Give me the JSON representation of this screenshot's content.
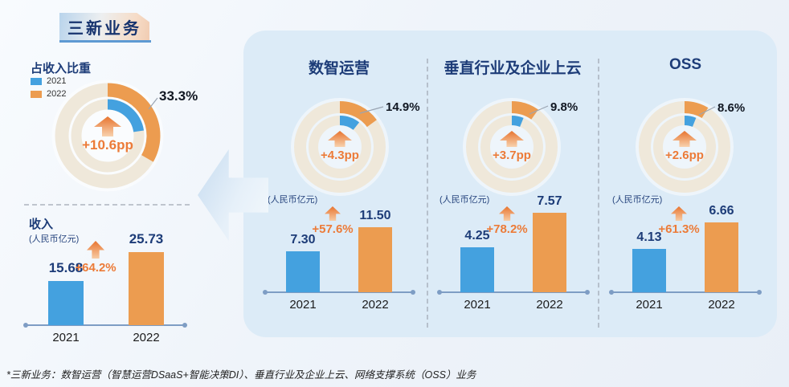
{
  "page": {
    "title": "三新业务",
    "footnote": "*三新业务：数智运营（智慧运营DSaaS+智能决策DI）、垂直行业及企业上云、网络支撑系统（OSS）业务"
  },
  "palette": {
    "blue": "#44A1DF",
    "orange": "#EC9C50",
    "ring_beige": "#EFE8DA",
    "navy": "#1D3C78",
    "accent_orange": "#EC7B38",
    "panel_blue": "#DCEBF7",
    "axis_blue_gray": "#7E9DC4",
    "label_black": "#111722"
  },
  "legend": {
    "items": [
      {
        "label": "2021",
        "color": "#44A1DF"
      },
      {
        "label": "2022",
        "color": "#EC9C50"
      }
    ]
  },
  "left": {
    "share": {
      "title": "占收入比重",
      "percent_label": "33.3%",
      "delta_label": "+10.6pp"
    },
    "revenue": {
      "title": "收入",
      "unit": "(人民币亿元)",
      "growth_label": "+64.2%"
    }
  },
  "segments": [
    {
      "name": "数智运营",
      "unit": "(人民币亿元)",
      "share": {
        "percent_label": "14.9%",
        "delta_label": "+4.3pp"
      },
      "revenue": {
        "growth_label": "+57.6%"
      }
    },
    {
      "name": "垂直行业及企业上云",
      "unit": "(人民币亿元)",
      "share": {
        "percent_label": "9.8%",
        "delta_label": "+3.7pp"
      },
      "revenue": {
        "growth_label": "+78.2%"
      }
    },
    {
      "name": "OSS",
      "unit": "(人民币亿元)",
      "share": {
        "percent_label": "8.6%",
        "delta_label": "+2.6pp"
      },
      "revenue": {
        "growth_label": "+61.3%"
      }
    }
  ],
  "chart_data": [
    {
      "id": "overall_share",
      "type": "donut",
      "title": "三新业务占收入比重",
      "series": [
        {
          "name": "2022",
          "ring": "outer",
          "percent": 33.3,
          "color": "#EC9C50"
        },
        {
          "name": "2021",
          "ring": "inner",
          "percent": 22.7,
          "color": "#44A1DF"
        }
      ],
      "callout": "33.3%",
      "center_annotation": "+10.6pp"
    },
    {
      "id": "overall_revenue",
      "type": "bar",
      "title": "收入",
      "ylabel": "人民币亿元",
      "categories": [
        "2021",
        "2022"
      ],
      "values": [
        15.68,
        25.73
      ],
      "bar_colors": [
        "#44A1DF",
        "#EC9C50"
      ],
      "growth": "+64.2%"
    },
    {
      "id": "dso_share",
      "type": "donut",
      "title": "数智运营占收入比重",
      "series": [
        {
          "name": "2022",
          "ring": "outer",
          "percent": 14.9,
          "color": "#EC9C50"
        },
        {
          "name": "2021",
          "ring": "inner",
          "percent": 10.6,
          "color": "#44A1DF"
        }
      ],
      "callout": "14.9%",
      "center_annotation": "+4.3pp"
    },
    {
      "id": "dso_revenue",
      "type": "bar",
      "title": "数智运营收入",
      "ylabel": "人民币亿元",
      "categories": [
        "2021",
        "2022"
      ],
      "values": [
        7.3,
        11.5
      ],
      "bar_colors": [
        "#44A1DF",
        "#EC9C50"
      ],
      "growth": "+57.6%"
    },
    {
      "id": "vertical_share",
      "type": "donut",
      "title": "垂直行业及企业上云占收入比重",
      "series": [
        {
          "name": "2022",
          "ring": "outer",
          "percent": 9.8,
          "color": "#EC9C50"
        },
        {
          "name": "2021",
          "ring": "inner",
          "percent": 6.1,
          "color": "#44A1DF"
        }
      ],
      "callout": "9.8%",
      "center_annotation": "+3.7pp"
    },
    {
      "id": "vertical_revenue",
      "type": "bar",
      "title": "垂直行业及企业上云收入",
      "ylabel": "人民币亿元",
      "categories": [
        "2021",
        "2022"
      ],
      "values": [
        4.25,
        7.57
      ],
      "bar_colors": [
        "#44A1DF",
        "#EC9C50"
      ],
      "growth": "+78.2%"
    },
    {
      "id": "oss_share",
      "type": "donut",
      "title": "OSS占收入比重",
      "series": [
        {
          "name": "2022",
          "ring": "outer",
          "percent": 8.6,
          "color": "#EC9C50"
        },
        {
          "name": "2021",
          "ring": "inner",
          "percent": 6.0,
          "color": "#44A1DF"
        }
      ],
      "callout": "8.6%",
      "center_annotation": "+2.6pp"
    },
    {
      "id": "oss_revenue",
      "type": "bar",
      "title": "OSS收入",
      "ylabel": "人民币亿元",
      "categories": [
        "2021",
        "2022"
      ],
      "values": [
        4.13,
        6.66
      ],
      "bar_colors": [
        "#44A1DF",
        "#EC9C50"
      ],
      "growth": "+61.3%"
    }
  ]
}
